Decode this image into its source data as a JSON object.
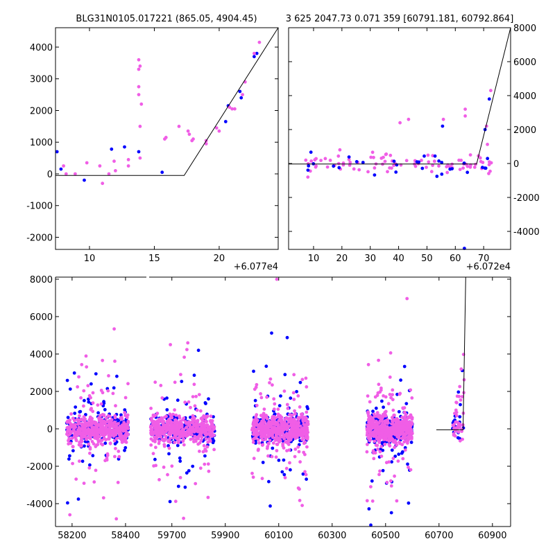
{
  "chart_data": [
    {
      "type": "scatter",
      "panel": "top-left",
      "title": "BLG31N0105.017221 (865.05, 4904.45)",
      "x_offset_label": "+6.077e4",
      "xlim": [
        7.38,
        24.55
      ],
      "ylim": [
        -2383,
        4612
      ],
      "xticks": [
        10,
        15,
        20
      ],
      "yticks": [
        -2000,
        -1000,
        0,
        1000,
        2000,
        3000,
        4000
      ],
      "yaxis_side": "left",
      "model_line": [
        [
          7.38,
          -50
        ],
        [
          17.3,
          -50
        ],
        [
          24.55,
          4612
        ]
      ],
      "series": [
        {
          "name": "blue",
          "color": "#0000ff",
          "points": [
            [
              7.5,
              700
            ],
            [
              7.8,
              150
            ],
            [
              9.6,
              -200
            ],
            [
              11.7,
              780
            ],
            [
              12.7,
              850
            ],
            [
              13.8,
              700
            ],
            [
              15.6,
              50
            ],
            [
              20.5,
              1650
            ],
            [
              20.7,
              2150
            ],
            [
              21.6,
              2600
            ],
            [
              21.7,
              2400
            ],
            [
              22.7,
              3700
            ],
            [
              22.9,
              3800
            ]
          ]
        },
        {
          "name": "pink",
          "color": "#f05ee6",
          "points": [
            [
              8,
              250
            ],
            [
              8.2,
              0
            ],
            [
              8.9,
              0
            ],
            [
              9.8,
              350
            ],
            [
              10.8,
              250
            ],
            [
              11,
              -300
            ],
            [
              11.5,
              0
            ],
            [
              11.9,
              400
            ],
            [
              12,
              100
            ],
            [
              13,
              450
            ],
            [
              13,
              250
            ],
            [
              13.8,
              3600
            ],
            [
              13.8,
              3300
            ],
            [
              13.9,
              3400
            ],
            [
              13.8,
              2750
            ],
            [
              13.8,
              2500
            ],
            [
              14,
              2200
            ],
            [
              13.9,
              1500
            ],
            [
              13.9,
              500
            ],
            [
              15.8,
              1100
            ],
            [
              15.9,
              1150
            ],
            [
              16.9,
              1500
            ],
            [
              17.6,
              1350
            ],
            [
              17.7,
              1250
            ],
            [
              17.9,
              1050
            ],
            [
              18,
              1100
            ],
            [
              19,
              950
            ],
            [
              19,
              1050
            ],
            [
              19.8,
              1450
            ],
            [
              20,
              1350
            ],
            [
              20.8,
              2100
            ],
            [
              21,
              2050
            ],
            [
              21.2,
              2050
            ],
            [
              21.8,
              2500
            ],
            [
              22,
              2900
            ],
            [
              23.1,
              4150
            ],
            [
              22.7,
              3800
            ]
          ]
        }
      ]
    },
    {
      "type": "scatter",
      "panel": "top-right",
      "title": "3 625 2047.73 0.071 359 [60791.181, 60792.864]",
      "x_offset_label": "+6.072e4",
      "xlim": [
        1.2,
        79.5
      ],
      "ylim": [
        -5061,
        8000
      ],
      "xticks": [
        10,
        20,
        30,
        40,
        50,
        60,
        70
      ],
      "yticks": [
        -4000,
        -2000,
        0,
        2000,
        4000,
        6000,
        8000
      ],
      "yaxis_side": "right",
      "model_line": [
        [
          1.2,
          -30
        ],
        [
          67.5,
          -30
        ],
        [
          79.5,
          8000
        ]
      ],
      "generator": {
        "seed": 7,
        "x_range": [
          7,
          73
        ],
        "y_sigma": 300,
        "count_blue": 30,
        "count_pink": 90
      },
      "outliers": [
        [
          63.5,
          3200,
          "pink"
        ],
        [
          63.5,
          2800,
          "pink"
        ],
        [
          55.5,
          2200,
          "blue"
        ],
        [
          55.8,
          2600,
          "pink"
        ],
        [
          40.5,
          2400,
          "pink"
        ],
        [
          43.5,
          2600,
          "pink"
        ],
        [
          63.2,
          -5000,
          "blue"
        ],
        [
          72,
          3800,
          "blue"
        ],
        [
          72.5,
          4300,
          "pink"
        ],
        [
          71,
          2200,
          "pink"
        ],
        [
          70.5,
          2000,
          "blue"
        ],
        [
          8,
          -800,
          "pink"
        ]
      ]
    },
    {
      "type": "scatter",
      "panel": "bottom",
      "xlim_segments": [
        [
          58138,
          58478
        ],
        [
          59615,
          60968
        ]
      ],
      "ylim": [
        -5222,
        8111
      ],
      "xticks": [
        58200,
        58400,
        59700,
        59900,
        60100,
        60300,
        60500,
        60700,
        60900
      ],
      "yticks": [
        -4000,
        -2000,
        0,
        2000,
        4000,
        6000,
        8000
      ],
      "model_line": [
        [
          60690,
          -50
        ],
        [
          60790,
          -50
        ],
        [
          60800,
          8111
        ]
      ],
      "clusters": [
        {
          "x_range": [
            58180,
            58410
          ],
          "n": 700,
          "seed": 11
        },
        {
          "x_range": [
            59620,
            59860
          ],
          "n": 700,
          "seed": 12
        },
        {
          "x_range": [
            60000,
            60210
          ],
          "n": 800,
          "seed": 13
        },
        {
          "x_range": [
            60430,
            60600
          ],
          "n": 800,
          "seed": 14
        },
        {
          "x_range": [
            60750,
            60795
          ],
          "n": 60,
          "seed": 15,
          "ramp": true
        }
      ],
      "colors": {
        "blue": "#0000ff",
        "pink": "#f05ee6"
      }
    }
  ]
}
